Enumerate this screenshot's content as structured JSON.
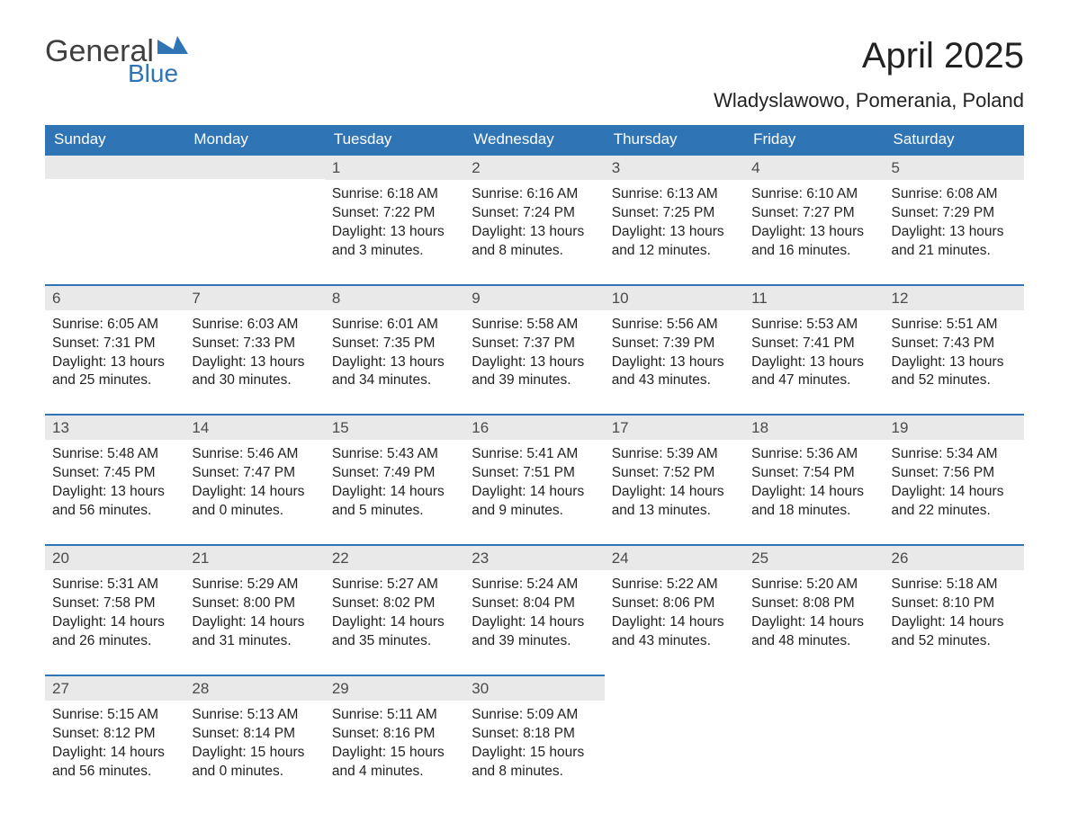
{
  "logo": {
    "text_general": "General",
    "text_blue": "Blue",
    "flag_color": "#2f74b5"
  },
  "header": {
    "month_title": "April 2025",
    "location": "Wladyslawowo, Pomerania, Poland"
  },
  "colors": {
    "header_bg": "#2f74b5",
    "header_text": "#ffffff",
    "daynum_bg": "#e9e9e9",
    "row_border": "#2f74b5",
    "body_text": "#222222",
    "logo_gray": "#3f3f3f"
  },
  "typography": {
    "month_title_fontsize": 40,
    "location_fontsize": 22,
    "weekday_fontsize": 17,
    "daynum_fontsize": 17,
    "cell_fontsize": 15.5
  },
  "weekdays": [
    "Sunday",
    "Monday",
    "Tuesday",
    "Wednesday",
    "Thursday",
    "Friday",
    "Saturday"
  ],
  "weeks": [
    [
      null,
      null,
      {
        "num": "1",
        "sunrise": "6:18 AM",
        "sunset": "7:22 PM",
        "daylight": "13 hours and 3 minutes."
      },
      {
        "num": "2",
        "sunrise": "6:16 AM",
        "sunset": "7:24 PM",
        "daylight": "13 hours and 8 minutes."
      },
      {
        "num": "3",
        "sunrise": "6:13 AM",
        "sunset": "7:25 PM",
        "daylight": "13 hours and 12 minutes."
      },
      {
        "num": "4",
        "sunrise": "6:10 AM",
        "sunset": "7:27 PM",
        "daylight": "13 hours and 16 minutes."
      },
      {
        "num": "5",
        "sunrise": "6:08 AM",
        "sunset": "7:29 PM",
        "daylight": "13 hours and 21 minutes."
      }
    ],
    [
      {
        "num": "6",
        "sunrise": "6:05 AM",
        "sunset": "7:31 PM",
        "daylight": "13 hours and 25 minutes."
      },
      {
        "num": "7",
        "sunrise": "6:03 AM",
        "sunset": "7:33 PM",
        "daylight": "13 hours and 30 minutes."
      },
      {
        "num": "8",
        "sunrise": "6:01 AM",
        "sunset": "7:35 PM",
        "daylight": "13 hours and 34 minutes."
      },
      {
        "num": "9",
        "sunrise": "5:58 AM",
        "sunset": "7:37 PM",
        "daylight": "13 hours and 39 minutes."
      },
      {
        "num": "10",
        "sunrise": "5:56 AM",
        "sunset": "7:39 PM",
        "daylight": "13 hours and 43 minutes."
      },
      {
        "num": "11",
        "sunrise": "5:53 AM",
        "sunset": "7:41 PM",
        "daylight": "13 hours and 47 minutes."
      },
      {
        "num": "12",
        "sunrise": "5:51 AM",
        "sunset": "7:43 PM",
        "daylight": "13 hours and 52 minutes."
      }
    ],
    [
      {
        "num": "13",
        "sunrise": "5:48 AM",
        "sunset": "7:45 PM",
        "daylight": "13 hours and 56 minutes."
      },
      {
        "num": "14",
        "sunrise": "5:46 AM",
        "sunset": "7:47 PM",
        "daylight": "14 hours and 0 minutes."
      },
      {
        "num": "15",
        "sunrise": "5:43 AM",
        "sunset": "7:49 PM",
        "daylight": "14 hours and 5 minutes."
      },
      {
        "num": "16",
        "sunrise": "5:41 AM",
        "sunset": "7:51 PM",
        "daylight": "14 hours and 9 minutes."
      },
      {
        "num": "17",
        "sunrise": "5:39 AM",
        "sunset": "7:52 PM",
        "daylight": "14 hours and 13 minutes."
      },
      {
        "num": "18",
        "sunrise": "5:36 AM",
        "sunset": "7:54 PM",
        "daylight": "14 hours and 18 minutes."
      },
      {
        "num": "19",
        "sunrise": "5:34 AM",
        "sunset": "7:56 PM",
        "daylight": "14 hours and 22 minutes."
      }
    ],
    [
      {
        "num": "20",
        "sunrise": "5:31 AM",
        "sunset": "7:58 PM",
        "daylight": "14 hours and 26 minutes."
      },
      {
        "num": "21",
        "sunrise": "5:29 AM",
        "sunset": "8:00 PM",
        "daylight": "14 hours and 31 minutes."
      },
      {
        "num": "22",
        "sunrise": "5:27 AM",
        "sunset": "8:02 PM",
        "daylight": "14 hours and 35 minutes."
      },
      {
        "num": "23",
        "sunrise": "5:24 AM",
        "sunset": "8:04 PM",
        "daylight": "14 hours and 39 minutes."
      },
      {
        "num": "24",
        "sunrise": "5:22 AM",
        "sunset": "8:06 PM",
        "daylight": "14 hours and 43 minutes."
      },
      {
        "num": "25",
        "sunrise": "5:20 AM",
        "sunset": "8:08 PM",
        "daylight": "14 hours and 48 minutes."
      },
      {
        "num": "26",
        "sunrise": "5:18 AM",
        "sunset": "8:10 PM",
        "daylight": "14 hours and 52 minutes."
      }
    ],
    [
      {
        "num": "27",
        "sunrise": "5:15 AM",
        "sunset": "8:12 PM",
        "daylight": "14 hours and 56 minutes."
      },
      {
        "num": "28",
        "sunrise": "5:13 AM",
        "sunset": "8:14 PM",
        "daylight": "15 hours and 0 minutes."
      },
      {
        "num": "29",
        "sunrise": "5:11 AM",
        "sunset": "8:16 PM",
        "daylight": "15 hours and 4 minutes."
      },
      {
        "num": "30",
        "sunrise": "5:09 AM",
        "sunset": "8:18 PM",
        "daylight": "15 hours and 8 minutes."
      },
      null,
      null,
      null
    ]
  ],
  "labels": {
    "sunrise": "Sunrise: ",
    "sunset": "Sunset: ",
    "daylight": "Daylight: "
  }
}
